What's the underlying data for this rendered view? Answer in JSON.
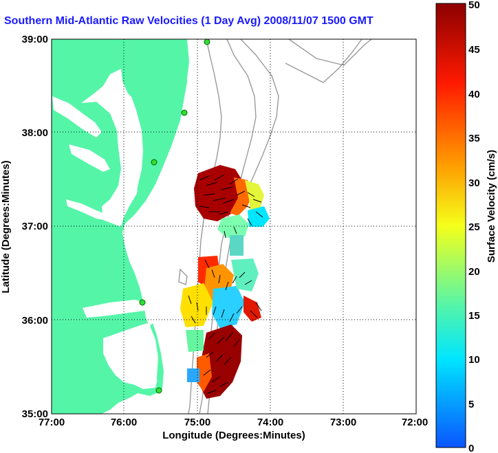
{
  "title": "Southern Mid-Atlantic Raw Velocities (1 Day Avg) 2008/11/07 1500 GMT",
  "x_axis": {
    "label": "Longitude (Degrees:Minutes)",
    "ticks": [
      "77:00",
      "76:00",
      "75:00",
      "74:00",
      "73:00",
      "72:00"
    ]
  },
  "y_axis": {
    "label": "Latitude (Degrees:Minutes)",
    "ticks": [
      "39:00",
      "38:00",
      "37:00",
      "36:00",
      "35:00"
    ]
  },
  "colorbar": {
    "label": "Surface Velocity (cm/s)",
    "ticks": [
      "50",
      "45",
      "40",
      "35",
      "30",
      "25",
      "20",
      "15",
      "10",
      "5",
      "0"
    ],
    "min": 0,
    "max": 50
  },
  "colors": {
    "land": "#55f5a8",
    "water": "#ffffff",
    "title": "#1a1aff",
    "station": "#33dd33",
    "contour": "#9a9a9a"
  },
  "grid": true
}
